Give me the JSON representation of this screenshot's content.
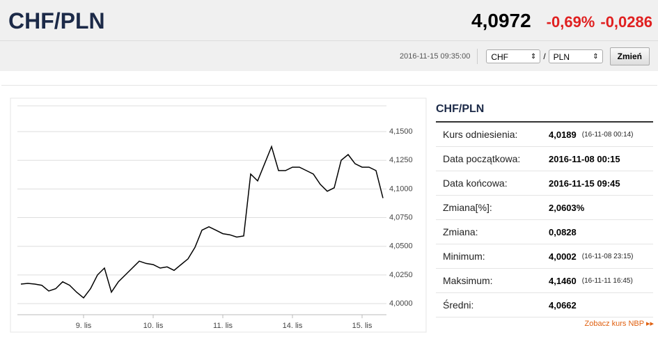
{
  "header": {
    "pair": "CHF/PLN",
    "rate": "4,0972",
    "change_pct": "-0,69%",
    "change_abs": "-0,0286"
  },
  "controls": {
    "timestamp": "2016-11-15 09:35:00",
    "from": "CHF",
    "separator": "/",
    "to": "PLN",
    "button": "Zmień"
  },
  "chart_data": {
    "type": "line",
    "color": "#000000",
    "grid": true,
    "categories": [
      null,
      null,
      null,
      null,
      null,
      null,
      null,
      null,
      null,
      "9. lis",
      null,
      null,
      null,
      null,
      null,
      null,
      null,
      null,
      null,
      "10. lis",
      null,
      null,
      null,
      null,
      null,
      null,
      null,
      null,
      null,
      "11. lis",
      null,
      null,
      null,
      null,
      null,
      null,
      null,
      null,
      null,
      "14. lis",
      null,
      null,
      null,
      null,
      null,
      null,
      null,
      null,
      null,
      "15. lis",
      null,
      null,
      null
    ],
    "values": [
      4.017,
      4.0176,
      4.017,
      4.016,
      4.011,
      4.013,
      4.019,
      4.016,
      4.01,
      4.005,
      4.013,
      4.025,
      4.031,
      4.01,
      4.019,
      4.025,
      4.031,
      4.037,
      4.035,
      4.034,
      4.031,
      4.032,
      4.029,
      4.034,
      4.039,
      4.049,
      4.064,
      4.067,
      4.064,
      4.061,
      4.06,
      4.058,
      4.059,
      4.113,
      4.107,
      4.122,
      4.137,
      4.116,
      4.116,
      4.119,
      4.119,
      4.116,
      4.113,
      4.104,
      4.098,
      4.101,
      4.125,
      4.13,
      4.122,
      4.119,
      4.119,
      4.116,
      4.092
    ],
    "ylim": [
      3.9903,
      4.1725
    ],
    "yticks": [
      {
        "value": 4.0,
        "label": "4,0000"
      },
      {
        "value": 4.025,
        "label": "4,0250"
      },
      {
        "value": 4.05,
        "label": "4,0500"
      },
      {
        "value": 4.075,
        "label": "4,0750"
      },
      {
        "value": 4.1,
        "label": "4,1000"
      },
      {
        "value": 4.125,
        "label": "4,1250"
      },
      {
        "value": 4.15,
        "label": "4,1500"
      }
    ]
  },
  "stats": {
    "title": "CHF/PLN",
    "rows": [
      {
        "label": "Kurs odniesienia:",
        "value": "4,0189",
        "note": "(16-11-08 00:14)"
      },
      {
        "label": "Data początkowa:",
        "value": "2016-11-08 00:15"
      },
      {
        "label": "Data końcowa:",
        "value": "2016-11-15 09:45"
      },
      {
        "label": "Zmiana[%]:",
        "value": "2,0603%"
      },
      {
        "label": "Zmiana:",
        "value": "0,0828"
      },
      {
        "label": "Minimum:",
        "value": "4,0002",
        "note": "(16-11-08 23:15)"
      },
      {
        "label": "Maksimum:",
        "value": "4,1460",
        "note": "(16-11-11 16:45)"
      },
      {
        "label": "Średni:",
        "value": "4,0662"
      }
    ],
    "link": "Zobacz kurs NBP"
  }
}
